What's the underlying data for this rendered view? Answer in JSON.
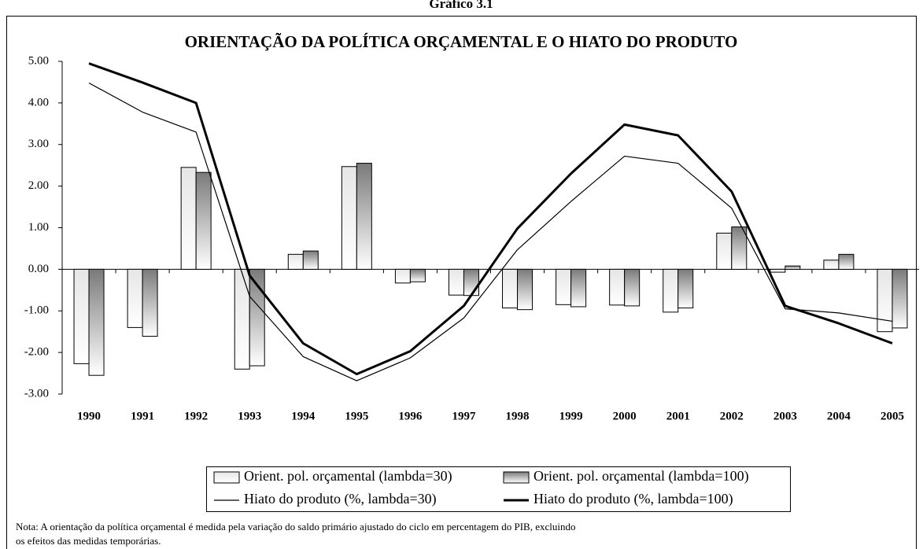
{
  "header": "Gráfico 3.1",
  "chart_data": {
    "type": "bar",
    "title": "ORIENTAÇÃO DA POLÍTICA ORÇAMENTAL E O HIATO DO PRODUTO",
    "categories": [
      "1990",
      "1991",
      "1992",
      "1993",
      "1994",
      "1995",
      "1996",
      "1997",
      "1998",
      "1999",
      "2000",
      "2001",
      "2002",
      "2003",
      "2004",
      "2005"
    ],
    "series": [
      {
        "name": "Orient. pol. orçamental (lambda=30)",
        "type": "bar",
        "color": "#e6e6e6",
        "values": [
          -2.27,
          -1.4,
          2.45,
          -2.4,
          0.36,
          2.47,
          -0.33,
          -0.62,
          -0.93,
          -0.85,
          -0.86,
          -1.03,
          0.87,
          -0.07,
          0.22,
          -1.5
        ]
      },
      {
        "name": "Orient. pol. orçamental (lambda=100)",
        "type": "bar",
        "color": "#7a7a7a",
        "values": [
          -2.55,
          -1.61,
          2.33,
          -2.32,
          0.44,
          2.55,
          -0.3,
          -0.63,
          -0.97,
          -0.9,
          -0.88,
          -0.93,
          1.02,
          0.08,
          0.36,
          -1.41
        ]
      },
      {
        "name": "Hiato do produto (%, lambda=30)",
        "type": "line",
        "color": "#000000",
        "values": [
          4.48,
          3.78,
          3.3,
          -0.65,
          -2.1,
          -2.68,
          -2.13,
          -1.17,
          0.47,
          1.63,
          2.72,
          2.55,
          1.47,
          -0.95,
          -1.05,
          -1.25
        ]
      },
      {
        "name": "Hiato do produto (%, lambda=100)",
        "type": "line",
        "color": "#000000",
        "values": [
          4.95,
          4.49,
          4.0,
          -0.15,
          -1.78,
          -2.52,
          -1.97,
          -0.88,
          0.98,
          2.3,
          3.48,
          3.22,
          1.87,
          -0.88,
          -1.3,
          -1.78
        ]
      }
    ],
    "ylim": [
      -3,
      5
    ],
    "yticks": [
      {
        "value": -3,
        "label": "-3.00"
      },
      {
        "value": -2,
        "label": "-2.00"
      },
      {
        "value": -1,
        "label": "-1.00"
      },
      {
        "value": 0,
        "label": "0.00"
      },
      {
        "value": 1,
        "label": "1.00"
      },
      {
        "value": 2,
        "label": "2.00"
      },
      {
        "value": 3,
        "label": "3.00"
      },
      {
        "value": 4,
        "label": "4.00"
      },
      {
        "value": 5,
        "label": "5.00"
      }
    ],
    "grid": false,
    "legend": "bottom",
    "note": [
      "Nota: A orientação da política orçamental é medida pela variação do saldo primário ajustado do ciclo em percentagem do PIB, excluindo",
      "os efeitos das medidas temporárias."
    ]
  }
}
